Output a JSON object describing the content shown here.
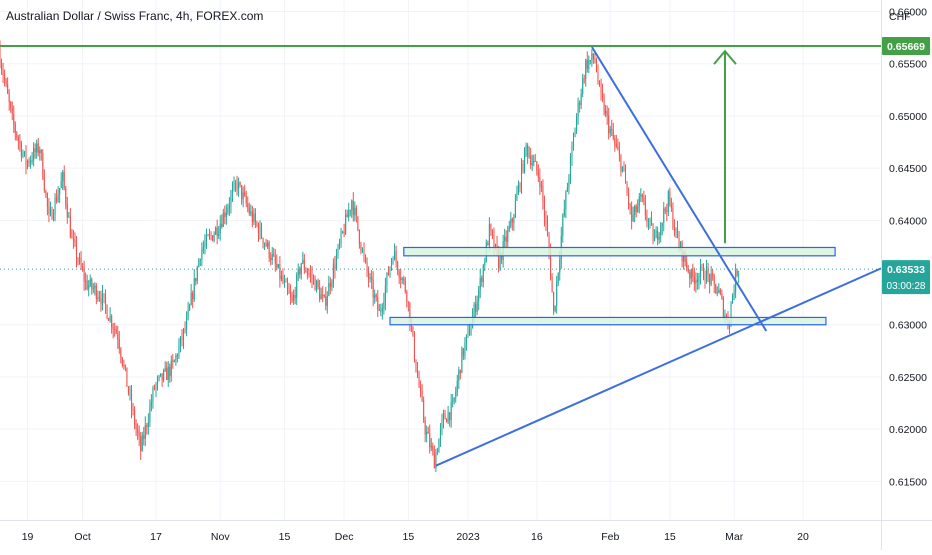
{
  "chart_data": {
    "type": "candlestick",
    "title": "Australian Dollar / Swiss Franc, 4h, FOREX.com",
    "currency": "CHF",
    "ylim": [
      0.6113,
      0.6611
    ],
    "y_ticks": [
      "0.66000",
      "0.65500",
      "0.65000",
      "0.64500",
      "0.64000",
      "0.63000",
      "0.62500",
      "0.62000",
      "0.61500"
    ],
    "x_ticks": [
      "19",
      "Oct",
      "17",
      "Nov",
      "15",
      "Dec",
      "15",
      "2023",
      "16",
      "Feb",
      "15",
      "Mar",
      "20"
    ],
    "x_range_days": [
      0,
      192
    ],
    "x_tick_days": [
      6,
      18,
      34,
      48,
      62,
      75,
      89,
      102,
      117,
      133,
      146,
      160,
      175
    ],
    "current_price": "0.63533",
    "countdown": "03:00:28",
    "target_price": "0.65669",
    "target_value": 0.65669,
    "path": [
      [
        0,
        0.6564
      ],
      [
        3,
        0.6495
      ],
      [
        6,
        0.6455
      ],
      [
        9,
        0.647
      ],
      [
        11,
        0.64
      ],
      [
        14,
        0.644
      ],
      [
        16,
        0.638
      ],
      [
        19,
        0.634
      ],
      [
        22,
        0.633
      ],
      [
        26,
        0.629
      ],
      [
        29,
        0.622
      ],
      [
        31,
        0.618
      ],
      [
        34,
        0.624
      ],
      [
        38,
        0.626
      ],
      [
        41,
        0.63
      ],
      [
        44,
        0.637
      ],
      [
        48,
        0.6395
      ],
      [
        52,
        0.6435
      ],
      [
        55,
        0.6405
      ],
      [
        58,
        0.638
      ],
      [
        61,
        0.635
      ],
      [
        64,
        0.632
      ],
      [
        66,
        0.636
      ],
      [
        69,
        0.634
      ],
      [
        71,
        0.632
      ],
      [
        74,
        0.637
      ],
      [
        77,
        0.642
      ],
      [
        80,
        0.6355
      ],
      [
        83,
        0.631
      ],
      [
        86,
        0.637
      ],
      [
        89,
        0.633
      ],
      [
        91,
        0.626
      ],
      [
        93,
        0.62
      ],
      [
        95,
        0.617
      ],
      [
        97,
        0.621
      ],
      [
        99,
        0.622
      ],
      [
        101,
        0.627
      ],
      [
        103,
        0.63
      ],
      [
        105,
        0.634
      ],
      [
        107,
        0.639
      ],
      [
        109,
        0.636
      ],
      [
        112,
        0.64
      ],
      [
        115,
        0.647
      ],
      [
        118,
        0.644
      ],
      [
        120,
        0.637
      ],
      [
        121,
        0.631
      ],
      [
        123,
        0.64
      ],
      [
        126,
        0.65
      ],
      [
        128,
        0.655
      ],
      [
        130,
        0.6555
      ],
      [
        131,
        0.6522
      ],
      [
        133,
        0.649
      ],
      [
        136,
        0.645
      ],
      [
        138,
        0.64
      ],
      [
        140,
        0.642
      ],
      [
        143,
        0.638
      ],
      [
        146,
        0.642
      ],
      [
        148,
        0.638
      ],
      [
        151,
        0.6345
      ],
      [
        154,
        0.635
      ],
      [
        157,
        0.633
      ],
      [
        159,
        0.63
      ],
      [
        160,
        0.633
      ],
      [
        161,
        0.6353
      ]
    ],
    "annotations": {
      "resistance_line": 0.65669,
      "upper_zone": [
        0.6366,
        0.6374
      ],
      "lower_zone": [
        0.63,
        0.6307
      ],
      "downtrend_line": [
        [
          129,
          0.6566
        ],
        [
          167,
          0.6294
        ]
      ],
      "uptrend_line": [
        [
          95,
          0.6165
        ],
        [
          192,
          0.6354
        ]
      ],
      "target_arrow": {
        "day": 158,
        "from": 0.6378,
        "to": 0.6562
      }
    },
    "colors": {
      "up": "#26a69a",
      "down": "#ef5350",
      "resistance": "#43a047",
      "trendline": "#3d6fdc",
      "zone_fill": "#d7f3dc",
      "zone_border": "#2962ff",
      "price_label": "#26a69a",
      "dotted_price": "#26a69a"
    }
  }
}
